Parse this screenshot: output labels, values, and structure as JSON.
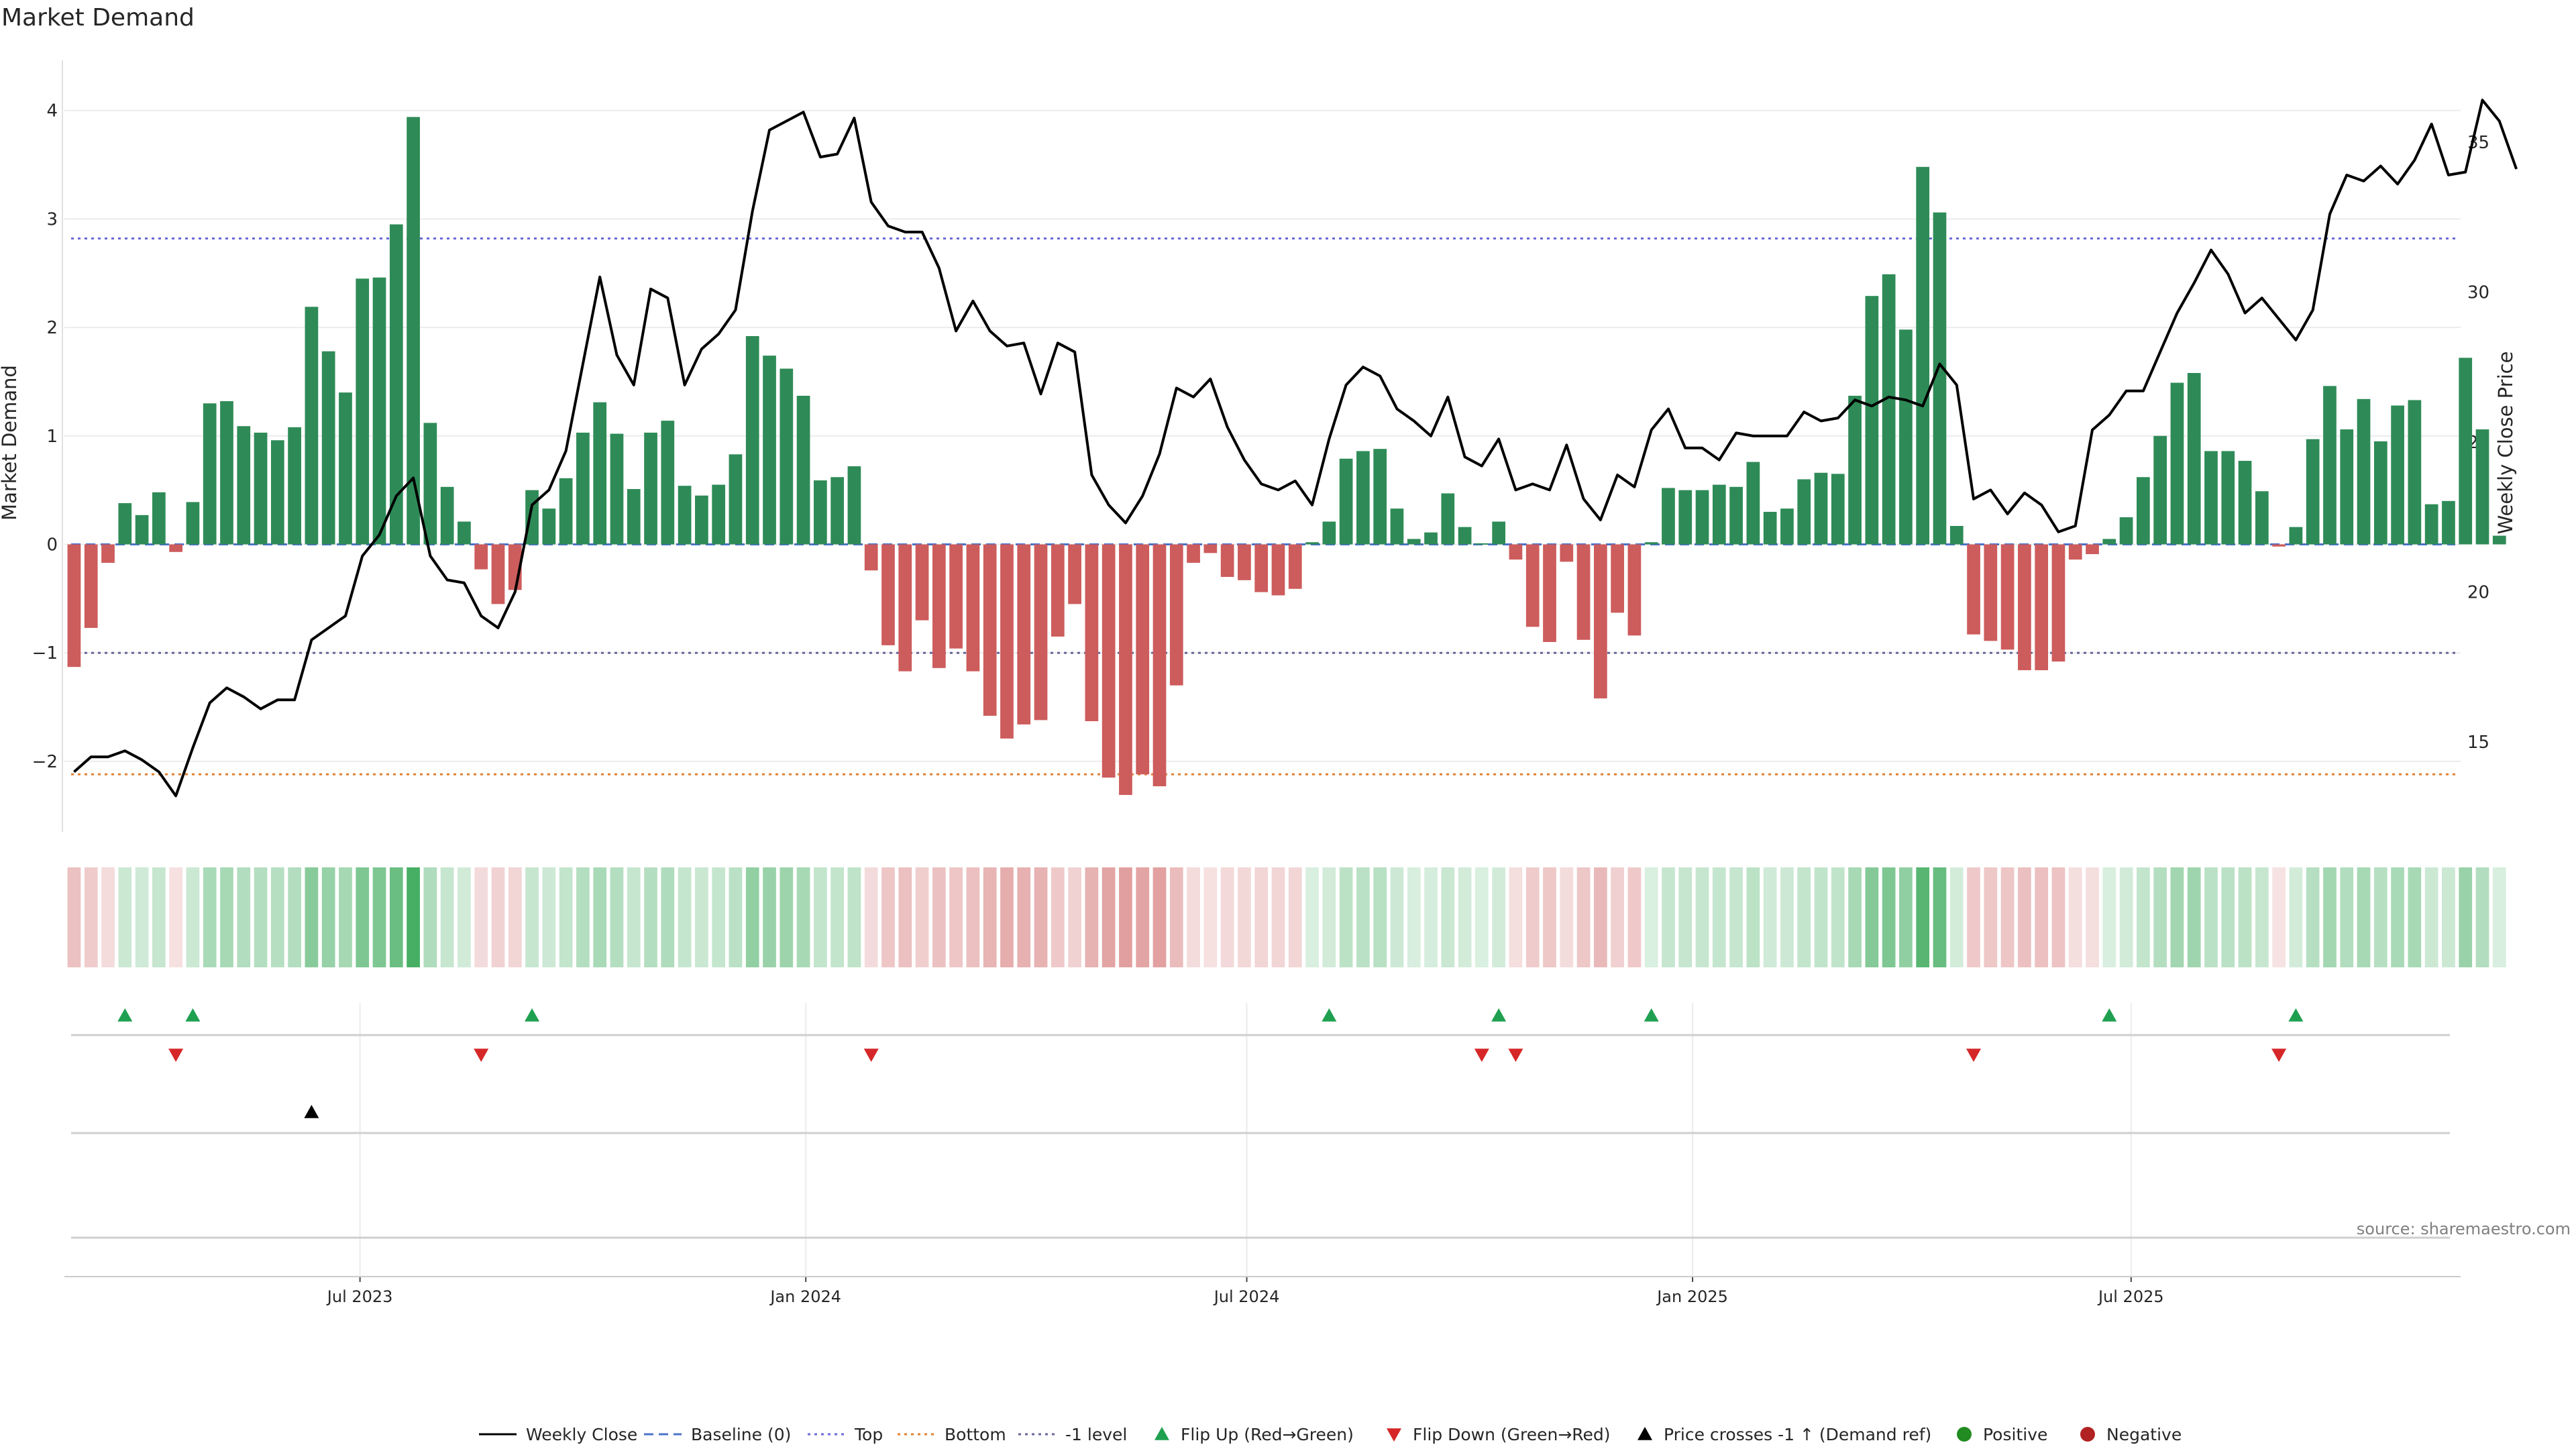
{
  "chart_data": {
    "type": "bar",
    "title": "Market Demand",
    "ylabel": "Market Demand",
    "y2label": "Weekly Close Price",
    "ylim": [
      -2.65,
      4.4
    ],
    "y2lim": [
      12.0,
      37.5
    ],
    "yticks": [
      -2,
      -1,
      0,
      1,
      2,
      3,
      4
    ],
    "yticklabels": [
      "−2",
      "−1",
      "0",
      "1",
      "2",
      "3",
      "4"
    ],
    "y2ticks": [
      15,
      20,
      25,
      30,
      35
    ],
    "y2ticklabels": [
      "15",
      "20",
      "25",
      "30",
      "35"
    ],
    "x_start": "2023-03-05",
    "x_step_days": 7,
    "x_range": [
      "2023-03-01",
      "2025-11-14"
    ],
    "xticks": [
      "2023-07-01",
      "2024-01-01",
      "2024-07-01",
      "2025-01-01",
      "2025-07-01"
    ],
    "xticklabels": [
      "Jul 2023",
      "Jan 2024",
      "Jul 2024",
      "Jan 2025",
      "Jul 2025"
    ],
    "reference_lines": {
      "baseline": 0,
      "top": 2.82,
      "bottom": -2.12,
      "minus1": -1
    },
    "colors": {
      "positive": "#2e8b57",
      "negative": "#cd5c5c",
      "line": "#000000",
      "baseline": "#4a72c9",
      "top": "#6a6ad8",
      "bottom": "#e08030",
      "minus1": "#666699",
      "flip_up": "#1fa050",
      "flip_down": "#d62728",
      "cross": "#000000",
      "dot_positive": "#228b22",
      "dot_negative": "#b22222"
    },
    "series": [
      {
        "name": "Market Demand",
        "type": "bar",
        "values": [
          -1.13,
          -0.77,
          -0.17,
          0.38,
          0.27,
          0.48,
          -0.07,
          0.39,
          1.3,
          1.32,
          1.09,
          1.03,
          0.96,
          1.08,
          2.19,
          1.78,
          1.4,
          2.45,
          2.46,
          2.95,
          3.94,
          1.12,
          0.53,
          0.21,
          -0.23,
          -0.55,
          -0.42,
          0.5,
          0.33,
          0.61,
          1.03,
          1.31,
          1.02,
          0.51,
          1.03,
          1.14,
          0.54,
          0.45,
          0.55,
          0.83,
          1.92,
          1.74,
          1.62,
          1.37,
          0.59,
          0.62,
          0.72,
          -0.24,
          -0.93,
          -1.17,
          -0.7,
          -1.14,
          -0.96,
          -1.17,
          -1.58,
          -1.79,
          -1.66,
          -1.62,
          -0.85,
          -0.55,
          -1.63,
          -2.15,
          -2.31,
          -2.12,
          -2.23,
          -1.3,
          -0.17,
          -0.08,
          -0.3,
          -0.33,
          -0.44,
          -0.47,
          -0.41,
          0.02,
          0.21,
          0.79,
          0.86,
          0.88,
          0.33,
          0.05,
          0.11,
          0.47,
          0.16,
          0.01,
          0.21,
          -0.14,
          -0.76,
          -0.9,
          -0.16,
          -0.88,
          -1.42,
          -0.63,
          -0.84,
          0.02,
          0.52,
          0.5,
          0.5,
          0.55,
          0.53,
          0.76,
          0.3,
          0.33,
          0.6,
          0.66,
          0.65,
          1.37,
          2.29,
          2.49,
          1.98,
          3.48,
          3.06,
          0.17,
          -0.83,
          -0.89,
          -0.97,
          -1.16,
          -1.16,
          -1.08,
          -0.14,
          -0.09,
          0.05,
          0.25,
          0.62,
          1.0,
          1.49,
          1.58,
          0.86,
          0.86,
          0.77,
          0.49,
          -0.02,
          0.16,
          0.97,
          1.46,
          1.06,
          1.34,
          0.95,
          1.28,
          1.33,
          0.37,
          0.4,
          1.72,
          1.06,
          0.08
        ]
      },
      {
        "name": "Weekly Close",
        "type": "line",
        "axis": "y2",
        "values": [
          14.0,
          14.5,
          14.5,
          14.7,
          14.4,
          14.0,
          13.2,
          14.8,
          16.3,
          16.8,
          16.5,
          16.1,
          16.4,
          16.4,
          18.4,
          18.8,
          19.2,
          21.2,
          21.9,
          23.2,
          23.8,
          21.2,
          20.4,
          20.3,
          19.2,
          18.8,
          20.0,
          22.9,
          23.4,
          24.7,
          27.6,
          30.5,
          27.9,
          26.9,
          30.1,
          29.8,
          26.9,
          28.1,
          28.6,
          29.4,
          32.7,
          35.4,
          35.7,
          36.0,
          34.5,
          34.6,
          35.8,
          33.0,
          32.2,
          32.0,
          32.0,
          30.8,
          28.7,
          29.7,
          28.7,
          28.2,
          28.3,
          26.6,
          28.3,
          28.0,
          23.9,
          22.9,
          22.3,
          23.2,
          24.6,
          26.8,
          26.5,
          27.1,
          25.5,
          24.4,
          23.6,
          23.4,
          23.7,
          22.9,
          25.1,
          26.9,
          27.5,
          27.2,
          26.1,
          25.7,
          25.2,
          26.5,
          24.5,
          24.2,
          25.1,
          23.4,
          23.6,
          23.4,
          24.9,
          23.1,
          22.4,
          23.9,
          23.5,
          25.4,
          26.1,
          24.8,
          24.8,
          24.4,
          25.3,
          25.2,
          25.2,
          25.2,
          26.0,
          25.7,
          25.8,
          26.4,
          26.2,
          26.5,
          26.4,
          26.2,
          27.6,
          26.9,
          23.1,
          23.4,
          22.6,
          23.3,
          22.9,
          22.0,
          22.2,
          25.4,
          25.9,
          26.7,
          26.7,
          28.0,
          29.3,
          30.3,
          31.4,
          30.6,
          29.3,
          29.8,
          29.1,
          28.4,
          29.4,
          32.6,
          33.9,
          33.7,
          34.2,
          33.6,
          34.4,
          35.6,
          33.9,
          34.0,
          36.4,
          35.7,
          34.1
        ]
      }
    ],
    "flip_up_weeks": [
      3,
      7,
      27,
      74,
      84,
      93,
      120,
      131
    ],
    "flip_down_weeks": [
      6,
      24,
      47,
      83,
      85,
      112,
      130
    ],
    "price_cross_weeks": [
      14
    ],
    "legend": [
      "Weekly Close",
      "Baseline (0)",
      "Top",
      "Bottom",
      "-1 level",
      "Flip Up (Red→Green)",
      "Flip Down (Green→Red)",
      "Price crosses -1 ↑ (Demand ref)",
      "Positive",
      "Negative"
    ],
    "source": "source: sharemaestro.com"
  }
}
